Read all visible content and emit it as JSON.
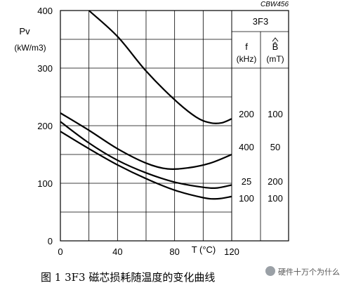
{
  "figure": {
    "code": "CBW456",
    "caption": "图 1    3F3 磁芯损耗随温度的变化曲线",
    "watermark": "硬件十万个为什么"
  },
  "chart_data": {
    "type": "line",
    "title": "3F3",
    "ylabel_line1": "Pv",
    "ylabel_line2": "(kW/m3)",
    "xlabel": "T (°C)",
    "xlim": [
      0,
      120
    ],
    "ylim": [
      0,
      400
    ],
    "x_ticks": [
      0,
      40,
      80,
      120
    ],
    "y_ticks": [
      0,
      100,
      200,
      300,
      400
    ],
    "grid": true,
    "table": {
      "col1_header": "f",
      "col1_unit": "(kHz)",
      "col2_header": "B̂",
      "col2_unit": "(mT)"
    },
    "series": [
      {
        "f_label": "200",
        "B_label": "100",
        "x": [
          20,
          40,
          60,
          80,
          95,
          105,
          113,
          120
        ],
        "y": [
          400,
          355,
          295,
          245,
          215,
          205,
          205,
          212
        ]
      },
      {
        "f_label": "400",
        "B_label": "50",
        "x": [
          0,
          20,
          40,
          60,
          75,
          90,
          105,
          120
        ],
        "y": [
          222,
          192,
          160,
          135,
          125,
          127,
          135,
          150
        ]
      },
      {
        "f_label": "25",
        "B_label": "200",
        "x": [
          0,
          20,
          40,
          60,
          80,
          100,
          110,
          120
        ],
        "y": [
          207,
          170,
          140,
          118,
          102,
          93,
          92,
          97
        ]
      },
      {
        "f_label": "100",
        "B_label": "100",
        "x": [
          0,
          20,
          40,
          60,
          80,
          100,
          110,
          120
        ],
        "y": [
          190,
          160,
          132,
          108,
          88,
          75,
          73,
          77
        ]
      }
    ]
  }
}
